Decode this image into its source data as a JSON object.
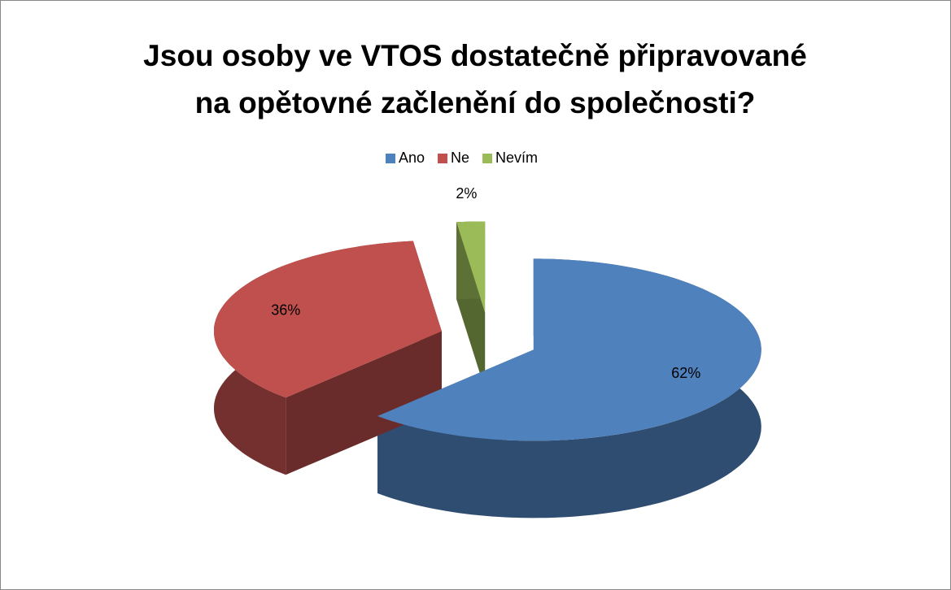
{
  "chart_data": {
    "type": "pie",
    "title": "Jsou osoby ve VTOS dostatečně připravované na opětovné začlenění do společnosti?",
    "categories": [
      "Ano",
      "Ne",
      "Nevím"
    ],
    "values": [
      62,
      36,
      2
    ],
    "value_labels": [
      "62%",
      "36%",
      "2%"
    ],
    "colors": [
      "#4f81bd",
      "#c0504d",
      "#9bbb59"
    ],
    "legend": "top"
  }
}
